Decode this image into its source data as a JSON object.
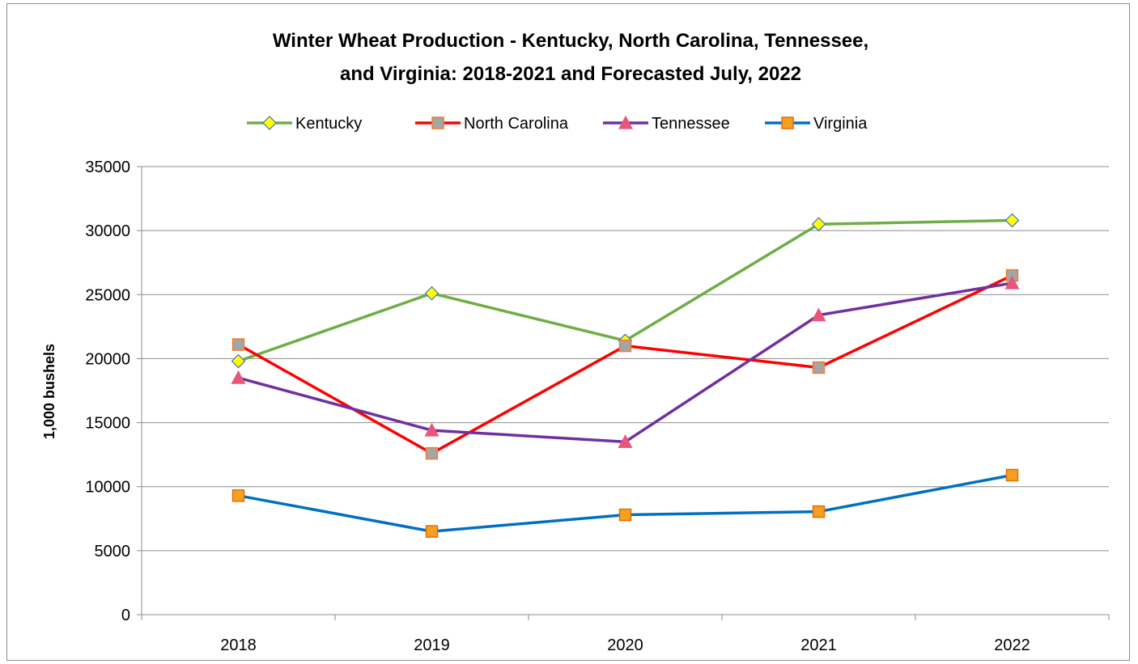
{
  "chart_data": {
    "type": "line",
    "title_line1": "Winter Wheat Production - Kentucky, North Carolina, Tennessee,",
    "title_line2": "and Virginia: 2018-2021 and Forecasted July, 2022",
    "xlabel": "",
    "ylabel": "1,000 bushels",
    "categories": [
      "2018",
      "2019",
      "2020",
      "2021",
      "2022"
    ],
    "ylim": [
      0,
      35000
    ],
    "yticks": [
      "0",
      "5000",
      "10000",
      "15000",
      "20000",
      "25000",
      "30000",
      "35000"
    ],
    "grid": "horizontal",
    "legend_position": "top",
    "series": [
      {
        "name": "Kentucky",
        "values": [
          19800,
          25100,
          21400,
          30500,
          30800
        ],
        "color": "#70ad47",
        "marker": "diamond",
        "marker_fill": "#ffff00",
        "marker_stroke": "#4472c4"
      },
      {
        "name": "North Carolina",
        "values": [
          21100,
          12600,
          21000,
          19300,
          26500
        ],
        "color": "#ff0000",
        "marker": "square",
        "marker_fill": "#a5a5a5",
        "marker_stroke": "#ed7d31"
      },
      {
        "name": "Tennessee",
        "values": [
          18500,
          14400,
          13500,
          23400,
          25900
        ],
        "color": "#7030a0",
        "marker": "triangle",
        "marker_fill": "#e8577a",
        "marker_stroke": "#e8577a"
      },
      {
        "name": "Virginia",
        "values": [
          9300,
          6500,
          7800,
          8050,
          10900
        ],
        "color": "#0070c0",
        "marker": "square",
        "marker_fill": "#f5a01f",
        "marker_stroke": "#e36c09"
      }
    ]
  }
}
